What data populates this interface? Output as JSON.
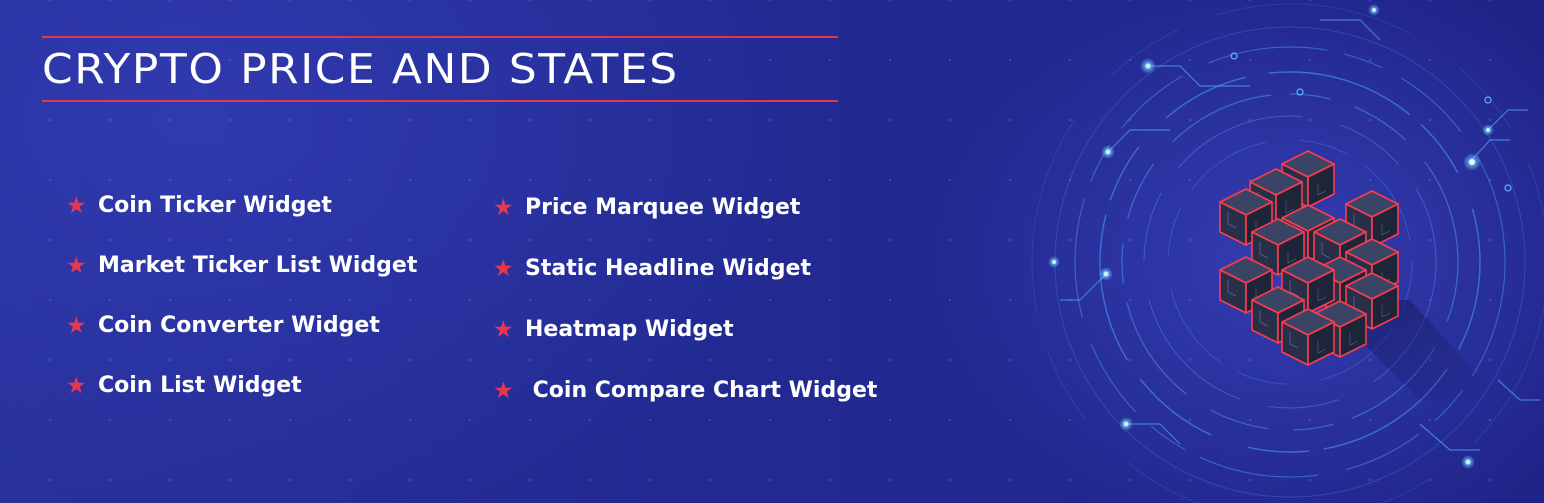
{
  "banner": {
    "title": "CRYPTO PRICE AND STATES",
    "accent_color": "#e0384f",
    "background_color": "#242c94",
    "features_left": [
      {
        "icon": "star-icon",
        "label": "Coin Ticker Widget"
      },
      {
        "icon": "star-icon",
        "label": "Market Ticker List Widget"
      },
      {
        "icon": "star-icon",
        "label": "Coin Converter Widget"
      },
      {
        "icon": "star-icon",
        "label": "Coin List Widget"
      }
    ],
    "features_right": [
      {
        "icon": "star-icon",
        "label": "Price Marquee Widget"
      },
      {
        "icon": "star-icon",
        "label": "Static Headline Widget"
      },
      {
        "icon": "star-icon",
        "label": "Heatmap Widget"
      },
      {
        "icon": "star-icon",
        "label": " Coin Compare Chart Widget"
      }
    ],
    "illustration": "blockchain-cubes-illustration"
  }
}
